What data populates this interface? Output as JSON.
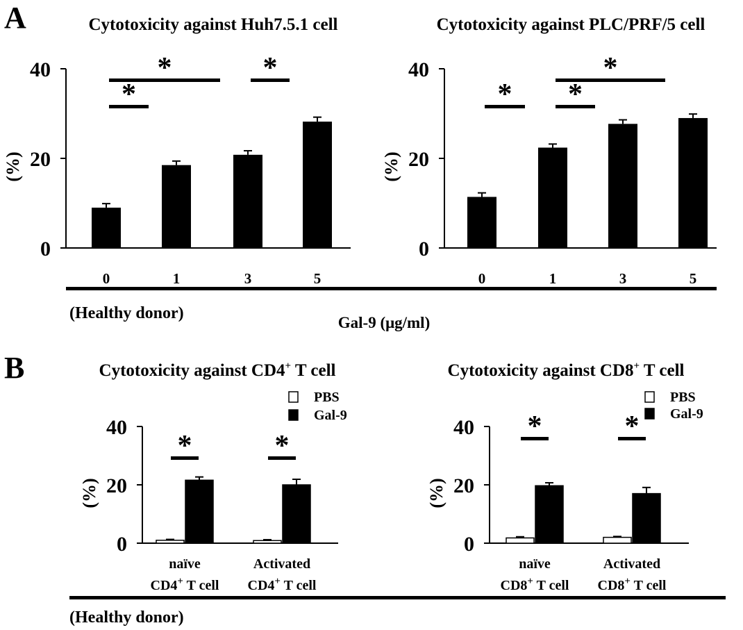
{
  "panel_a": {
    "label": "A",
    "gal9_axis_label": "Gal-9 (μg/ml)",
    "donor_label": "(Healthy donor)"
  },
  "panel_b": {
    "label": "B",
    "donor_label": "(Healthy donor)"
  },
  "colors": {
    "pbs": "#ffffff",
    "gal9": "#000000",
    "axis": "#000000"
  },
  "chart_data": [
    {
      "id": "a-left",
      "type": "bar",
      "title": "Cytotoxicity against Huh7.5.1 cell",
      "ylabel": "(%)",
      "ylim": [
        0,
        40
      ],
      "yticks": [
        0,
        20,
        40
      ],
      "categories": [
        "0",
        "1",
        "3",
        "5"
      ],
      "series": [
        {
          "values": [
            9.0,
            18.5,
            20.8,
            28.2
          ],
          "errors": [
            0.9,
            0.9,
            0.9,
            1.0
          ]
        }
      ],
      "significance": [
        {
          "from": 0,
          "to": 1,
          "label": "*"
        },
        {
          "from": 0,
          "to": 2,
          "label": "*"
        },
        {
          "from": 2,
          "to": 3,
          "label": "*"
        }
      ]
    },
    {
      "id": "a-right",
      "type": "bar",
      "title": "Cytotoxicity against PLC/PRF/5 cell",
      "ylabel": "(%)",
      "ylim": [
        0,
        40
      ],
      "yticks": [
        0,
        20,
        40
      ],
      "categories": [
        "0",
        "1",
        "3",
        "5"
      ],
      "series": [
        {
          "values": [
            11.4,
            22.4,
            27.7,
            29.0
          ],
          "errors": [
            0.9,
            0.8,
            0.9,
            0.9
          ]
        }
      ],
      "significance": [
        {
          "from": 0,
          "to": 1,
          "label": "*"
        },
        {
          "from": 1,
          "to": 2,
          "label": "*"
        },
        {
          "from": 1,
          "to": 3,
          "label": "*"
        }
      ]
    },
    {
      "id": "b-left",
      "type": "bar",
      "title_main": "Cytotoxicity against CD4",
      "title_sup": "+",
      "title_tail": " T cell",
      "ylabel": "(%)",
      "ylim": [
        0,
        40
      ],
      "yticks": [
        0,
        20,
        40
      ],
      "categories": [
        {
          "line1": "naïve",
          "line2_main": "CD4",
          "line2_sup": "+",
          "line2_tail": " T cell"
        },
        {
          "line1": "Activated",
          "line2_main": "CD4",
          "line2_sup": "+",
          "line2_tail": " T cell"
        }
      ],
      "legend": [
        "PBS",
        "Gal-9"
      ],
      "series": [
        {
          "name": "PBS",
          "values": [
            1.0,
            0.9
          ],
          "errors": [
            0.3,
            0.3
          ]
        },
        {
          "name": "Gal-9",
          "values": [
            21.6,
            20.0
          ],
          "errors": [
            1.1,
            1.9
          ]
        }
      ],
      "significance": [
        {
          "group": 0,
          "label": "*"
        },
        {
          "group": 1,
          "label": "*"
        }
      ]
    },
    {
      "id": "b-right",
      "type": "bar",
      "title_main": "Cytotoxicity against CD8",
      "title_sup": "+",
      "title_tail": " T cell",
      "ylabel": "(%)",
      "ylim": [
        0,
        40
      ],
      "yticks": [
        0,
        20,
        40
      ],
      "categories": [
        {
          "line1": "naïve",
          "line2_main": "CD8",
          "line2_sup": "+",
          "line2_tail": " T cell"
        },
        {
          "line1": "Activated",
          "line2_main": "CD8",
          "line2_sup": "+",
          "line2_tail": " T cell"
        }
      ],
      "legend": [
        "PBS",
        "Gal-9"
      ],
      "series": [
        {
          "name": "PBS",
          "values": [
            1.8,
            2.0
          ],
          "errors": [
            0.4,
            0.3
          ]
        },
        {
          "name": "Gal-9",
          "values": [
            19.7,
            17.0
          ],
          "errors": [
            1.0,
            2.1
          ]
        }
      ],
      "significance": [
        {
          "group": 0,
          "label": "*"
        },
        {
          "group": 1,
          "label": "*"
        }
      ]
    }
  ]
}
